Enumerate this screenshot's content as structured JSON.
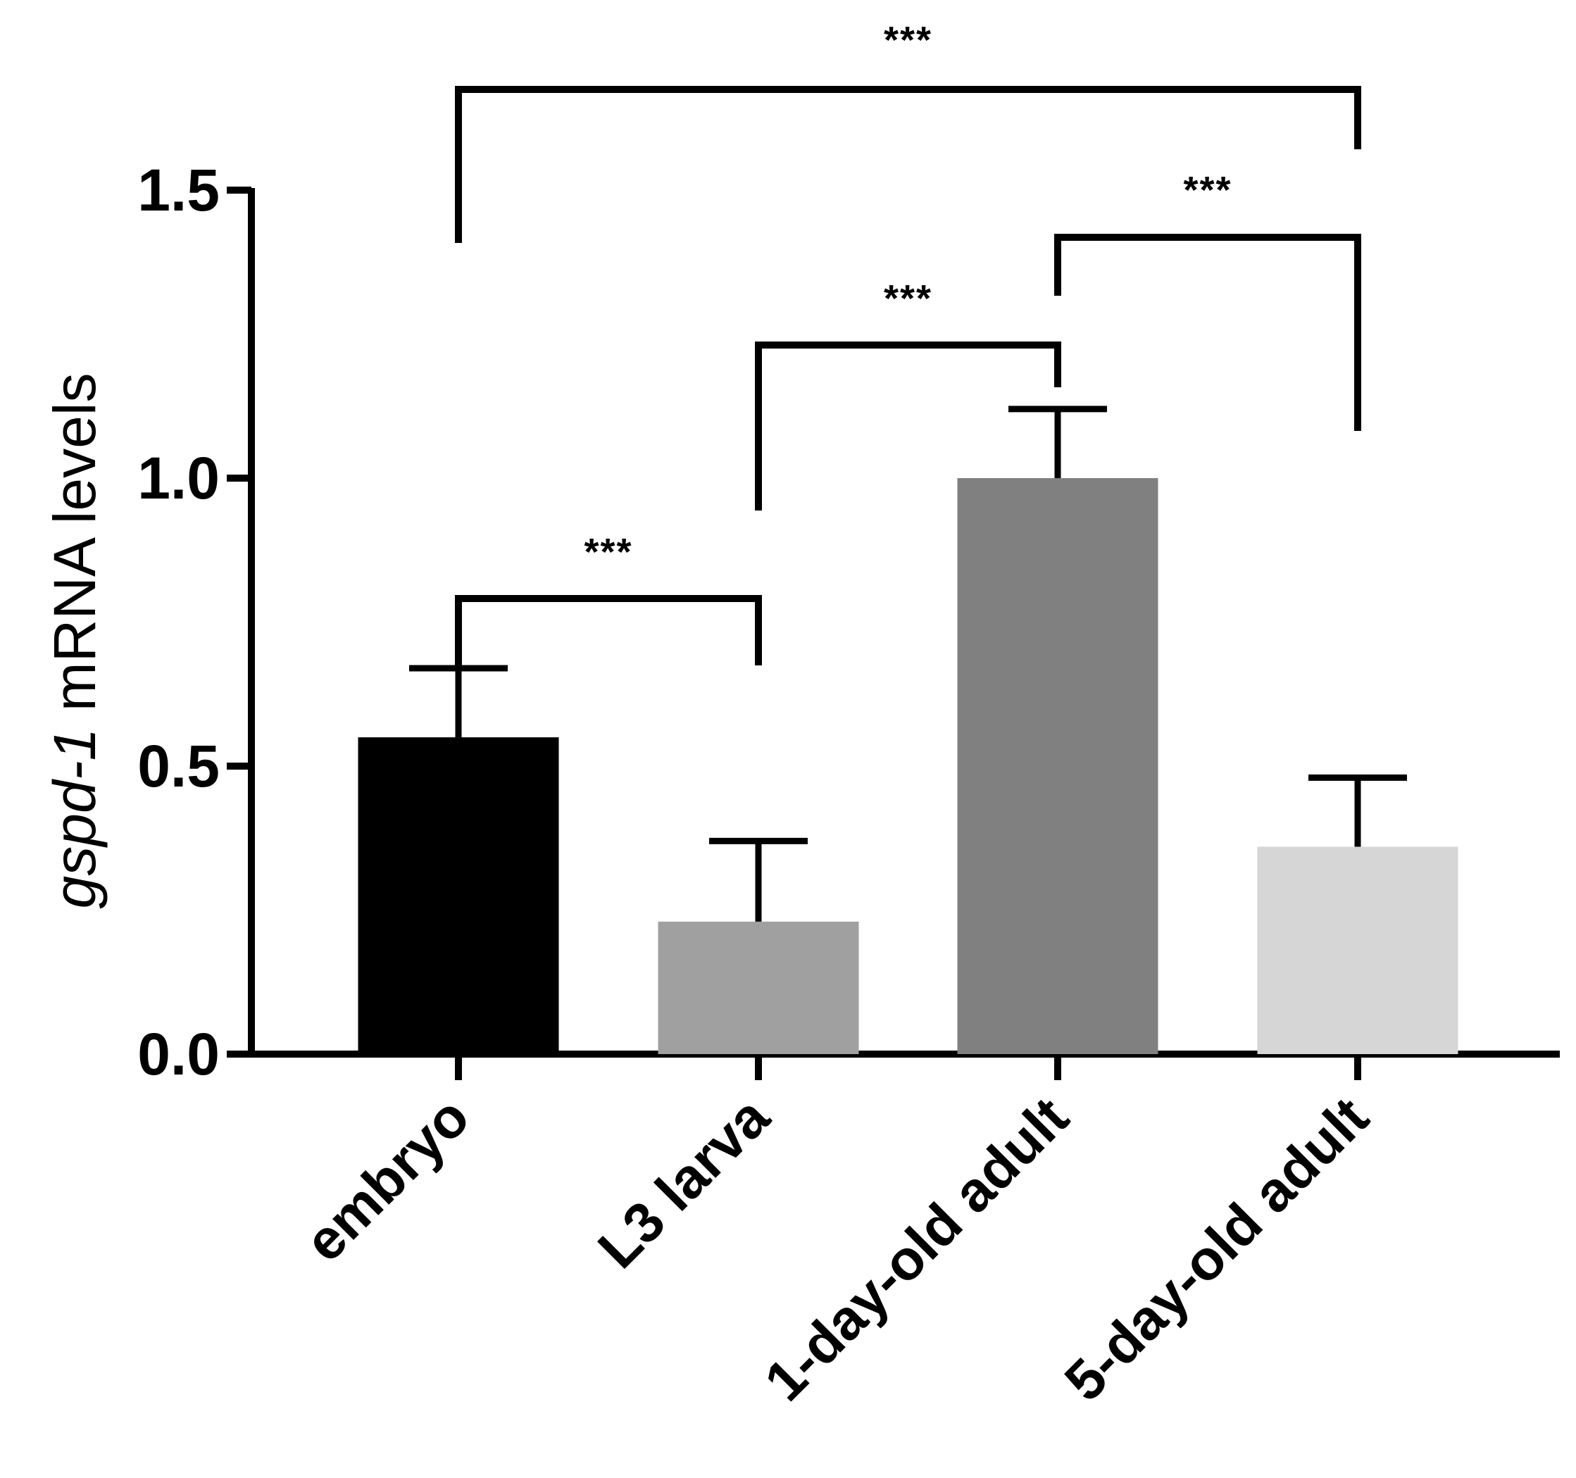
{
  "chart_data": {
    "type": "bar",
    "ylabel_italic": "gspd-1",
    "ylabel_rest": " mRNA levels",
    "categories": [
      "embryo",
      "L3 larva",
      "1-day-old adult",
      "5-day-old adult"
    ],
    "values": [
      0.55,
      0.23,
      1.0,
      0.36
    ],
    "errors": [
      0.12,
      0.14,
      0.12,
      0.12
    ],
    "colors": [
      "#000000",
      "#a0a0a0",
      "#808080",
      "#d6d6d6"
    ],
    "ylim": [
      0,
      1.5
    ],
    "yticks": [
      "0.0",
      "0.5",
      "1.0",
      "1.5"
    ],
    "grid": false,
    "comparisons": [
      {
        "from": 0,
        "to": 1,
        "label": "***"
      },
      {
        "from": 1,
        "to": 2,
        "label": "***"
      },
      {
        "from": 2,
        "to": 3,
        "label": "***"
      },
      {
        "from": 0,
        "to": 3,
        "label": "***"
      }
    ]
  }
}
